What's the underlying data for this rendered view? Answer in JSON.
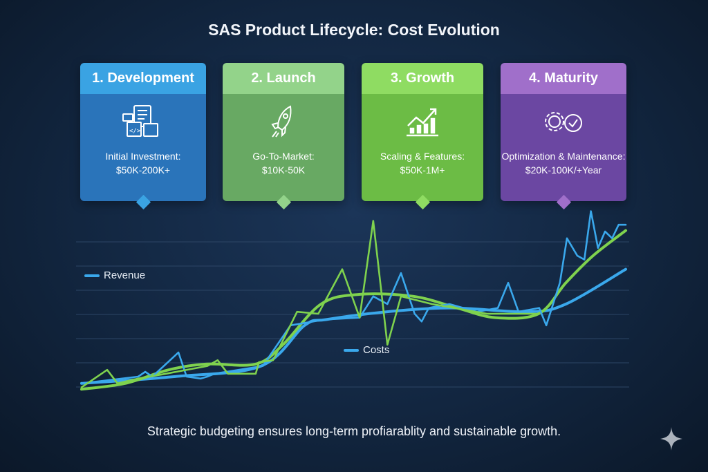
{
  "title": "SAS Product Lifecycle: Cost Evolution",
  "stages": [
    {
      "label": "1. Development",
      "line1": "Initial Investment:",
      "line2": "$50K-200K+",
      "icon": "code-devices-icon",
      "header_color": "#3aa3e3",
      "body_color": "#2a74ba",
      "diamond_color": "#3aa3e3"
    },
    {
      "label": "2. Launch",
      "line1": "Go-To-Market:",
      "line2": "$10K-50K",
      "icon": "rocket-icon",
      "header_color": "#93d38a",
      "body_color": "#68a963",
      "diamond_color": "#93d38a"
    },
    {
      "label": "3. Growth",
      "line1": "Scaling & Features:",
      "line2": "$50K-1M+",
      "icon": "growth-chart-icon",
      "header_color": "#8fdc62",
      "body_color": "#6cbc45",
      "diamond_color": "#8fdc62"
    },
    {
      "label": "4. Maturity",
      "line1": "Optimization & Maintenance:",
      "line2": "$20K-100K/+Year",
      "icon": "gears-check-icon",
      "header_color": "#a06fca",
      "body_color": "#6b47a2",
      "diamond_color": "#a06fca"
    }
  ],
  "chart_data": {
    "type": "line",
    "xlim": [
      0,
      100
    ],
    "ylim": [
      0,
      100
    ],
    "grid": true,
    "axes_visible": false,
    "legend": [
      {
        "name": "Revenue",
        "color": "#3aa8ec",
        "placement": "left"
      },
      {
        "name": "Costs",
        "color": "#3aa8ec",
        "placement": "center"
      }
    ],
    "series": [
      {
        "color": "#3aa8ec",
        "style": "smooth",
        "x": [
          0,
          17,
          33,
          41,
          45,
          56,
          68,
          82,
          89,
          100
        ],
        "y": [
          9,
          12.5,
          18,
          39,
          42,
          46,
          48,
          46,
          50,
          68
        ]
      },
      {
        "color": "#7fd24e",
        "style": "smooth",
        "x": [
          0,
          8,
          16,
          23,
          32,
          37,
          44,
          51,
          61,
          69,
          76,
          84,
          89,
          94,
          100
        ],
        "y": [
          6,
          9,
          16,
          19,
          19,
          29,
          50,
          55,
          54,
          48,
          43,
          45,
          61,
          75,
          88
        ]
      },
      {
        "color": "#3aa8ec",
        "style": "jagged",
        "x": [
          0,
          10.4,
          11.7,
          13,
          17.8,
          19.3,
          21.9,
          23.1,
          24.4,
          33.3,
          38.4,
          44.7,
          51.1,
          53.6,
          56.2,
          58.7,
          61.2,
          62.5,
          63.8,
          67.6,
          72.7,
          76.5,
          78.4,
          80.3,
          84.1,
          85.4,
          87.9,
          89.2,
          91.1,
          92.4,
          93.6,
          94.9,
          96.2,
          97.5,
          98.7,
          100
        ],
        "y": [
          9,
          12.5,
          15,
          12.5,
          25,
          12.5,
          11.5,
          12.5,
          14,
          18,
          39,
          42,
          43,
          54,
          50,
          66,
          45,
          41,
          48,
          50,
          46,
          48,
          61,
          46,
          48,
          39,
          61,
          84,
          75,
          73,
          98,
          79,
          87.5,
          84,
          91,
          91
        ]
      },
      {
        "color": "#7fd24e",
        "style": "jagged",
        "x": [
          0,
          4.7,
          6.6,
          10.4,
          15.5,
          23.1,
          25,
          26.9,
          32,
          32.6,
          35.2,
          39.6,
          43.5,
          47.9,
          51.1,
          53.6,
          56.2,
          58.7,
          64.4,
          74.5,
          84.1
        ],
        "y": [
          7,
          16,
          9,
          11.5,
          14,
          18,
          21,
          14,
          14,
          20,
          21,
          46,
          45,
          68,
          43,
          93,
          29,
          54,
          50,
          45,
          45
        ]
      }
    ]
  },
  "footer": "Strategic budgeting ensures long-term profiarablity and sustainable growth.",
  "watermark_icon": "sparkle-icon"
}
